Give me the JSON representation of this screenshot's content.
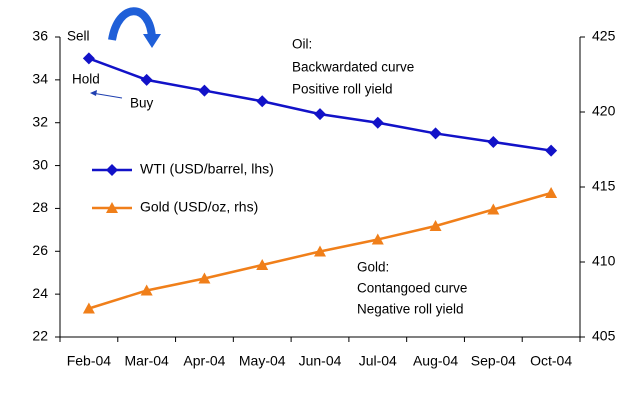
{
  "chart_data": {
    "type": "line",
    "categories": [
      "Feb-04",
      "Mar-04",
      "Apr-04",
      "May-04",
      "Jun-04",
      "Jul-04",
      "Aug-04",
      "Sep-04",
      "Oct-04"
    ],
    "series": [
      {
        "name": "WTI (USD/barrel, lhs)",
        "color": "#1212c8",
        "marker": "diamond",
        "values": [
          35,
          34,
          33.5,
          33,
          32.4,
          32,
          31.5,
          31.1,
          30.7
        ]
      },
      {
        "name": "Gold (USD/oz, rhs)",
        "color": "#f07f1a",
        "marker": "triangle",
        "axis": "y2",
        "values": [
          406.9,
          408.1,
          408.9,
          409.8,
          410.7,
          411.5,
          412.4,
          413.5,
          414.6
        ]
      }
    ],
    "ylim": [
      22,
      36
    ],
    "yticks": [
      22,
      24,
      26,
      28,
      30,
      32,
      34,
      36
    ],
    "y2lim": [
      405,
      425
    ],
    "y2ticks": [
      405,
      410,
      415,
      420,
      425
    ],
    "annotations": [
      "Sell",
      "Hold",
      "Buy",
      "Oil:",
      "Backwardated curve",
      "Positive roll yield",
      "Gold:",
      "Contangoed curve",
      "Negative roll yield"
    ]
  }
}
